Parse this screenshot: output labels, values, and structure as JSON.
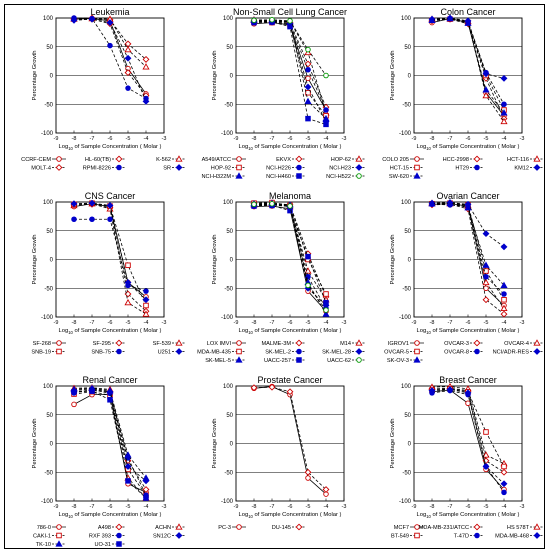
{
  "shared": {
    "x_ticks": [
      "-9",
      "-8",
      "-7",
      "-6",
      "-5",
      "-4",
      "-3"
    ],
    "y_ticks": [
      "100",
      "50",
      "0",
      "-50",
      "-100"
    ],
    "ylabel": "Percentage Growth",
    "xlabel_prefix": "Log",
    "xlabel_sub": "10",
    "xlabel_suffix": " of Sample Concentration ( Molar )"
  },
  "chart_data": [
    {
      "type": "line",
      "title": "Leukemia",
      "x": [
        -8,
        -7,
        -6,
        -5,
        -4
      ],
      "xlim": [
        -9,
        -3
      ],
      "ylim": [
        -100,
        100
      ],
      "grid": "horizontal",
      "series": [
        {
          "name": "CCRF-CEM",
          "color": "#cc0000",
          "marker": "circle-open",
          "dash": "solid",
          "values": [
            98,
            99,
            95,
            12,
            -32
          ]
        },
        {
          "name": "HL-60(TB)",
          "color": "#cc0000",
          "marker": "diamond-open",
          "dash": "dash",
          "values": [
            99,
            100,
            97,
            55,
            28
          ]
        },
        {
          "name": "K-562",
          "color": "#cc0000",
          "marker": "triangle-open",
          "dash": "dash",
          "values": [
            98,
            99,
            98,
            45,
            15
          ]
        },
        {
          "name": "MOLT-4",
          "color": "#cc0000",
          "marker": "diamond-open",
          "dash": "dash",
          "values": [
            97,
            98,
            90,
            5,
            -35
          ]
        },
        {
          "name": "RPMI-8226",
          "color": "#0000cc",
          "marker": "circle",
          "dash": "dash",
          "values": [
            100,
            99,
            52,
            -22,
            -40
          ]
        },
        {
          "name": "SR",
          "color": "#0000cc",
          "marker": "diamond",
          "dash": "dash",
          "values": [
            96,
            98,
            92,
            30,
            -45
          ]
        }
      ]
    },
    {
      "type": "line",
      "title": "Non-Small Cell Lung Cancer",
      "x": [
        -8,
        -7,
        -6,
        -5,
        -4
      ],
      "xlim": [
        -9,
        -3
      ],
      "ylim": [
        -100,
        100
      ],
      "grid": "horizontal",
      "series": [
        {
          "name": "A549/ATCC",
          "color": "#cc0000",
          "marker": "circle-open",
          "dash": "solid",
          "values": [
            90,
            92,
            88,
            -5,
            -60
          ]
        },
        {
          "name": "EKVX",
          "color": "#cc0000",
          "marker": "diamond-open",
          "dash": "dash",
          "values": [
            95,
            95,
            92,
            20,
            -55
          ]
        },
        {
          "name": "HOP-62",
          "color": "#cc0000",
          "marker": "triangle-open",
          "dash": "dash",
          "values": [
            97,
            96,
            94,
            40,
            -65
          ]
        },
        {
          "name": "HOP-92",
          "color": "#cc0000",
          "marker": "square-open",
          "dash": "dash",
          "values": [
            93,
            92,
            88,
            -30,
            -70
          ]
        },
        {
          "name": "NCI-H226",
          "color": "#0000cc",
          "marker": "circle",
          "dash": "dash",
          "values": [
            95,
            94,
            90,
            10,
            -60
          ]
        },
        {
          "name": "NCI-H23",
          "color": "#0000cc",
          "marker": "diamond",
          "dash": "dash",
          "values": [
            94,
            93,
            90,
            -20,
            -80
          ]
        },
        {
          "name": "NCI-H322M",
          "color": "#0000cc",
          "marker": "triangle",
          "dash": "dash",
          "values": [
            96,
            95,
            93,
            -45,
            -75
          ]
        },
        {
          "name": "NCI-H460",
          "color": "#0000cc",
          "marker": "square",
          "dash": "dash",
          "values": [
            92,
            93,
            85,
            -75,
            -85
          ]
        },
        {
          "name": "NCI-H522",
          "color": "#009900",
          "marker": "circle-open",
          "dash": "dash",
          "values": [
            96,
            97,
            95,
            45,
            0
          ]
        }
      ]
    },
    {
      "type": "line",
      "title": "Colon Cancer",
      "x": [
        -8,
        -7,
        -6,
        -5,
        -4
      ],
      "xlim": [
        -9,
        -3
      ],
      "ylim": [
        -100,
        100
      ],
      "grid": "horizontal",
      "series": [
        {
          "name": "COLO 205",
          "color": "#cc0000",
          "marker": "circle-open",
          "dash": "solid",
          "values": [
            92,
            99,
            92,
            -30,
            -70
          ]
        },
        {
          "name": "HCC-2998",
          "color": "#cc0000",
          "marker": "diamond-open",
          "dash": "dash",
          "values": [
            95,
            98,
            90,
            -5,
            -75
          ]
        },
        {
          "name": "HCT-116",
          "color": "#cc0000",
          "marker": "triangle-open",
          "dash": "dash",
          "values": [
            98,
            99,
            94,
            -35,
            -80
          ]
        },
        {
          "name": "HCT-15",
          "color": "#cc0000",
          "marker": "square-open",
          "dash": "dash",
          "values": [
            96,
            98,
            92,
            0,
            -60
          ]
        },
        {
          "name": "HT29",
          "color": "#0000cc",
          "marker": "circle",
          "dash": "dash",
          "values": [
            97,
            99,
            93,
            5,
            -50
          ]
        },
        {
          "name": "KM12",
          "color": "#0000cc",
          "marker": "diamond",
          "dash": "dash",
          "values": [
            98,
            100,
            95,
            3,
            -5
          ]
        },
        {
          "name": "SW-620",
          "color": "#0000cc",
          "marker": "triangle",
          "dash": "dash",
          "values": [
            96,
            99,
            91,
            -25,
            -65
          ]
        }
      ]
    },
    {
      "type": "line",
      "title": "CNS Cancer",
      "x": [
        -8,
        -7,
        -6,
        -5,
        -4
      ],
      "xlim": [
        -9,
        -3
      ],
      "ylim": [
        -100,
        100
      ],
      "grid": "horizontal",
      "series": [
        {
          "name": "SF-268",
          "color": "#cc0000",
          "marker": "circle-open",
          "dash": "solid",
          "values": [
            92,
            97,
            92,
            -40,
            -65
          ]
        },
        {
          "name": "SF-295",
          "color": "#cc0000",
          "marker": "diamond-open",
          "dash": "dash",
          "values": [
            95,
            96,
            90,
            -60,
            -90
          ]
        },
        {
          "name": "SF-539",
          "color": "#cc0000",
          "marker": "triangle-open",
          "dash": "dash",
          "values": [
            94,
            97,
            88,
            -75,
            -95
          ]
        },
        {
          "name": "SNB-19",
          "color": "#cc0000",
          "marker": "square-open",
          "dash": "dash",
          "values": [
            96,
            98,
            93,
            -10,
            -80
          ]
        },
        {
          "name": "SNB-75",
          "color": "#0000cc",
          "marker": "circle",
          "dash": "dash",
          "values": [
            70,
            70,
            70,
            -45,
            -55
          ]
        },
        {
          "name": "U251",
          "color": "#0000cc",
          "marker": "diamond",
          "dash": "dash",
          "values": [
            97,
            98,
            94,
            -40,
            -70
          ]
        }
      ]
    },
    {
      "type": "line",
      "title": "Melanoma",
      "x": [
        -8,
        -7,
        -6,
        -5,
        -4
      ],
      "xlim": [
        -9,
        -3
      ],
      "ylim": [
        -100,
        100
      ],
      "grid": "horizontal",
      "series": [
        {
          "name": "LOX IMVI",
          "color": "#cc0000",
          "marker": "circle-open",
          "dash": "solid",
          "values": [
            92,
            93,
            88,
            -55,
            -90
          ]
        },
        {
          "name": "MALME-3M",
          "color": "#cc0000",
          "marker": "diamond-open",
          "dash": "dash",
          "values": [
            97,
            96,
            95,
            10,
            -65
          ]
        },
        {
          "name": "M14",
          "color": "#cc0000",
          "marker": "triangle-open",
          "dash": "dash",
          "values": [
            95,
            96,
            92,
            -20,
            -70
          ]
        },
        {
          "name": "MDA-MB-435",
          "color": "#cc0000",
          "marker": "square-open",
          "dash": "dash",
          "values": [
            98,
            99,
            94,
            0,
            -60
          ]
        },
        {
          "name": "SK-MEL-2",
          "color": "#0000cc",
          "marker": "circle",
          "dash": "dash",
          "values": [
            96,
            95,
            93,
            -30,
            -85
          ]
        },
        {
          "name": "SK-MEL-28",
          "color": "#0000cc",
          "marker": "diamond",
          "dash": "dash",
          "values": [
            94,
            95,
            92,
            -50,
            -80
          ]
        },
        {
          "name": "SK-MEL-5",
          "color": "#0000cc",
          "marker": "triangle",
          "dash": "dash",
          "values": [
            97,
            98,
            95,
            -40,
            -95
          ]
        },
        {
          "name": "UACC-257",
          "color": "#0000cc",
          "marker": "square",
          "dash": "dash",
          "values": [
            93,
            94,
            85,
            5,
            -75
          ]
        },
        {
          "name": "UACC-62",
          "color": "#009900",
          "marker": "circle-open",
          "dash": "dash",
          "values": [
            96,
            97,
            93,
            -45,
            -88
          ]
        }
      ]
    },
    {
      "type": "line",
      "title": "Ovarian Cancer",
      "x": [
        -8,
        -7,
        -6,
        -5,
        -4
      ],
      "xlim": [
        -9,
        -3
      ],
      "ylim": [
        -100,
        100
      ],
      "grid": "horizontal",
      "series": [
        {
          "name": "IGROV1",
          "color": "#cc0000",
          "marker": "circle-open",
          "dash": "solid",
          "values": [
            96,
            97,
            93,
            -50,
            -80
          ]
        },
        {
          "name": "OVCAR-3",
          "color": "#cc0000",
          "marker": "diamond-open",
          "dash": "dash",
          "values": [
            95,
            96,
            88,
            -70,
            -95
          ]
        },
        {
          "name": "OVCAR-4",
          "color": "#cc0000",
          "marker": "triangle-open",
          "dash": "dash",
          "values": [
            98,
            97,
            94,
            -40,
            -85
          ]
        },
        {
          "name": "OVCAR-5",
          "color": "#cc0000",
          "marker": "square-open",
          "dash": "dash",
          "values": [
            97,
            98,
            95,
            -20,
            -70
          ]
        },
        {
          "name": "OVCAR-8",
          "color": "#0000cc",
          "marker": "circle",
          "dash": "dash",
          "values": [
            96,
            95,
            92,
            -30,
            -60
          ]
        },
        {
          "name": "NCI/ADR-RES",
          "color": "#0000cc",
          "marker": "diamond",
          "dash": "dash",
          "values": [
            98,
            99,
            96,
            45,
            22
          ]
        },
        {
          "name": "SK-OV-3",
          "color": "#0000cc",
          "marker": "triangle",
          "dash": "dash",
          "values": [
            97,
            98,
            90,
            -10,
            -45
          ]
        }
      ]
    },
    {
      "type": "line",
      "title": "Renal Cancer",
      "x": [
        -8,
        -7,
        -6,
        -5,
        -4
      ],
      "xlim": [
        -9,
        -3
      ],
      "ylim": [
        -100,
        100
      ],
      "grid": "horizontal",
      "series": [
        {
          "name": "786-0",
          "color": "#cc0000",
          "marker": "circle-open",
          "dash": "solid",
          "values": [
            68,
            85,
            85,
            -70,
            -85
          ]
        },
        {
          "name": "A498",
          "color": "#cc0000",
          "marker": "diamond-open",
          "dash": "dash",
          "values": [
            90,
            92,
            90,
            -30,
            -80
          ]
        },
        {
          "name": "ACHN",
          "color": "#cc0000",
          "marker": "triangle-open",
          "dash": "dash",
          "values": [
            96,
            97,
            94,
            -60,
            -95
          ]
        },
        {
          "name": "CAKI-1",
          "color": "#cc0000",
          "marker": "square-open",
          "dash": "dash",
          "values": [
            86,
            90,
            84,
            -45,
            -90
          ]
        },
        {
          "name": "RXF 393",
          "color": "#0000cc",
          "marker": "circle",
          "dash": "dash",
          "values": [
            88,
            94,
            87,
            -25,
            -90
          ]
        },
        {
          "name": "SN12C",
          "color": "#0000cc",
          "marker": "diamond",
          "dash": "dash",
          "values": [
            92,
            95,
            90,
            -40,
            -65
          ]
        },
        {
          "name": "TK-10",
          "color": "#0000cc",
          "marker": "triangle",
          "dash": "dash",
          "values": [
            94,
            96,
            92,
            -20,
            -60
          ]
        },
        {
          "name": "UO-31",
          "color": "#0000cc",
          "marker": "square",
          "dash": "dash",
          "values": [
            90,
            91,
            76,
            -65,
            -95
          ]
        }
      ]
    },
    {
      "type": "line",
      "title": "Prostate Cancer",
      "x": [
        -8,
        -7,
        -6,
        -5,
        -4
      ],
      "xlim": [
        -9,
        -3
      ],
      "ylim": [
        -100,
        100
      ],
      "grid": "horizontal",
      "series": [
        {
          "name": "PC-3",
          "color": "#cc0000",
          "marker": "circle-open",
          "dash": "solid",
          "values": [
            96,
            99,
            85,
            -60,
            -88
          ]
        },
        {
          "name": "DU-145",
          "color": "#cc0000",
          "marker": "diamond-open",
          "dash": "dash",
          "values": [
            97,
            98,
            90,
            -50,
            -80
          ]
        }
      ]
    },
    {
      "type": "line",
      "title": "Breast Cancer",
      "x": [
        -8,
        -7,
        -6,
        -5,
        -4
      ],
      "xlim": [
        -9,
        -3
      ],
      "ylim": [
        -100,
        100
      ],
      "grid": "horizontal",
      "series": [
        {
          "name": "MCF7",
          "color": "#cc0000",
          "marker": "circle-open",
          "dash": "solid",
          "values": [
            90,
            93,
            70,
            -45,
            -80
          ]
        },
        {
          "name": "MDA-MB-231/ATCC",
          "color": "#cc0000",
          "marker": "diamond-open",
          "dash": "dash",
          "values": [
            95,
            96,
            92,
            -30,
            -50
          ]
        },
        {
          "name": "HS 578T",
          "color": "#cc0000",
          "marker": "triangle-open",
          "dash": "dash",
          "values": [
            98,
            99,
            95,
            -20,
            -35
          ]
        },
        {
          "name": "BT-549",
          "color": "#cc0000",
          "marker": "square-open",
          "dash": "dash",
          "values": [
            93,
            95,
            90,
            20,
            -40
          ]
        },
        {
          "name": "T-47D",
          "color": "#0000cc",
          "marker": "circle",
          "dash": "dash",
          "values": [
            88,
            92,
            85,
            -40,
            -85
          ]
        },
        {
          "name": "MDA-MB-468",
          "color": "#0000cc",
          "marker": "diamond",
          "dash": "dash",
          "values": [
            92,
            94,
            88,
            -40,
            -70
          ]
        }
      ]
    }
  ]
}
